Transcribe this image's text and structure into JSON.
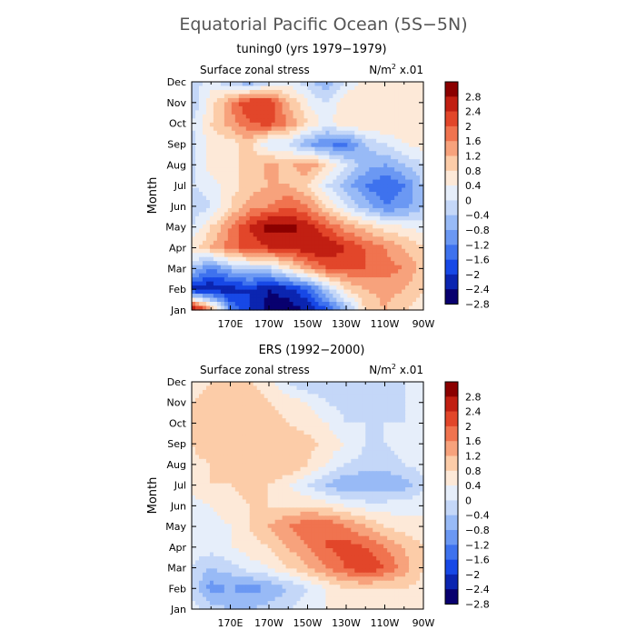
{
  "figure": {
    "title": "Equatorial Pacific Ocean (5S−5N)"
  },
  "colors": {
    "scale": [
      "#08006f",
      "#0b25b0",
      "#1748e6",
      "#3e72ee",
      "#6b98f3",
      "#98baf6",
      "#c4d7f8",
      "#e6eefa",
      "#fde9d8",
      "#fccca8",
      "#f7a27c",
      "#f0734f",
      "#e2462a",
      "#c11f12",
      "#8b0000"
    ]
  },
  "colorbar": {
    "ticks": [
      "2.8",
      "2.4",
      "2",
      "1.6",
      "1.2",
      "0.8",
      "0.4",
      "0",
      "−0.4",
      "−0.8",
      "−1.2",
      "−1.6",
      "−2",
      "−2.4",
      "−2.8"
    ]
  },
  "chart_data": [
    {
      "type": "heatmap",
      "title": "tuning0 (yrs 1979−1979)",
      "subtitle_left": "Surface zonal stress",
      "units_label": "N/m",
      "units_sup": "2",
      "units_suffix": " x.01",
      "ylabel": "Month",
      "xticks": [
        "170E",
        "170W",
        "150W",
        "130W",
        "110W",
        "90W"
      ],
      "xtick_lon": [
        170,
        190,
        210,
        230,
        250,
        270
      ],
      "xlim": [
        150,
        270
      ],
      "yticks": [
        "Jan",
        "Feb",
        "Mar",
        "Apr",
        "May",
        "Jun",
        "Jul",
        "Aug",
        "Sep",
        "Oct",
        "Nov",
        "Dec"
      ],
      "levels": [
        -2.8,
        -2.4,
        -2,
        -1.6,
        -1.2,
        -0.8,
        -0.4,
        0,
        0.4,
        0.8,
        1.2,
        1.6,
        2,
        2.4,
        2.8
      ],
      "lon": [
        150,
        160,
        170,
        180,
        190,
        200,
        210,
        220,
        230,
        240,
        250,
        260,
        270
      ],
      "months": [
        "Jan",
        "Feb",
        "Mar",
        "Apr",
        "May",
        "Jun",
        "Jul",
        "Aug",
        "Sep",
        "Oct",
        "Nov",
        "Dec"
      ],
      "values": [
        [
          3.0,
          1.2,
          -1.6,
          -2.4,
          -3.0,
          -3.0,
          -2.8,
          -2.0,
          -1.0,
          0.4,
          0.8,
          0.4,
          0.2
        ],
        [
          -2.6,
          -2.8,
          -2.6,
          -2.4,
          -2.8,
          -2.6,
          -2.0,
          -0.8,
          0.4,
          0.8,
          1.0,
          0.8,
          0.4
        ],
        [
          -0.8,
          -1.6,
          -1.0,
          -0.6,
          -0.6,
          0.2,
          1.0,
          1.6,
          1.6,
          1.6,
          1.4,
          1.2,
          0.6
        ],
        [
          0.2,
          0.8,
          1.4,
          1.8,
          2.0,
          2.0,
          2.4,
          2.4,
          2.0,
          1.6,
          1.2,
          0.8,
          0.4
        ],
        [
          -0.4,
          0.4,
          1.2,
          2.0,
          2.6,
          2.6,
          2.2,
          1.6,
          1.0,
          0.6,
          0.2,
          0.0,
          -0.2
        ],
        [
          -0.8,
          -0.4,
          0.4,
          1.0,
          1.2,
          1.6,
          1.2,
          0.4,
          -0.4,
          -1.0,
          -1.6,
          -1.4,
          -0.8
        ],
        [
          -0.4,
          -0.2,
          0.2,
          0.6,
          0.8,
          0.8,
          0.4,
          -0.4,
          -1.0,
          -1.6,
          -2.0,
          -1.6,
          -0.8
        ],
        [
          -0.6,
          0.2,
          0.4,
          0.4,
          1.0,
          0.6,
          1.2,
          0.4,
          -0.4,
          -1.0,
          -1.2,
          -0.8,
          -0.4
        ],
        [
          -0.6,
          0.2,
          0.2,
          0.6,
          -0.4,
          -0.4,
          -1.2,
          -1.6,
          -1.8,
          -0.8,
          -0.4,
          0.0,
          0.2
        ],
        [
          -0.4,
          0.4,
          1.0,
          1.6,
          1.8,
          1.2,
          0.4,
          -0.2,
          0.4,
          0.4,
          0.4,
          0.4,
          0.4
        ],
        [
          -0.8,
          0.2,
          1.2,
          2.0,
          2.0,
          0.8,
          0.0,
          -0.4,
          0.4,
          0.4,
          0.4,
          0.4,
          0.4
        ],
        [
          -0.6,
          -0.2,
          -0.8,
          -1.2,
          -0.6,
          -0.2,
          -0.6,
          -1.2,
          -0.4,
          0.2,
          0.4,
          0.4,
          0.4
        ]
      ]
    },
    {
      "type": "heatmap",
      "title": "ERS (1992−2000)",
      "subtitle_left": "Surface zonal stress",
      "units_label": "N/m",
      "units_sup": "2",
      "units_suffix": " x.01",
      "ylabel": "Month",
      "xticks": [
        "170E",
        "170W",
        "150W",
        "130W",
        "110W",
        "90W"
      ],
      "xtick_lon": [
        170,
        190,
        210,
        230,
        250,
        270
      ],
      "xlim": [
        150,
        270
      ],
      "yticks": [
        "Jan",
        "Feb",
        "Mar",
        "Apr",
        "May",
        "Jun",
        "Jul",
        "Aug",
        "Sep",
        "Oct",
        "Nov",
        "Dec"
      ],
      "levels": [
        -2.8,
        -2.4,
        -2,
        -1.6,
        -1.2,
        -0.8,
        -0.4,
        0,
        0.4,
        0.8,
        1.2,
        1.6,
        2,
        2.4,
        2.8
      ],
      "lon": [
        150,
        160,
        170,
        180,
        190,
        200,
        210,
        220,
        230,
        240,
        250,
        260,
        270
      ],
      "months": [
        "Jan",
        "Feb",
        "Mar",
        "Apr",
        "May",
        "Jun",
        "Jul",
        "Aug",
        "Sep",
        "Oct",
        "Nov",
        "Dec"
      ],
      "values": [
        [
          -0.2,
          -0.6,
          -0.8,
          -0.8,
          -0.6,
          -0.4,
          -0.2,
          0.0,
          0.2,
          0.4,
          0.4,
          0.4,
          0.2
        ],
        [
          -0.6,
          -1.4,
          -1.2,
          -1.4,
          -1.2,
          -0.8,
          -0.4,
          0.0,
          0.4,
          0.4,
          0.4,
          0.4,
          0.2
        ],
        [
          -0.4,
          -0.8,
          -0.6,
          -0.2,
          0.0,
          0.4,
          0.8,
          1.2,
          1.6,
          2.0,
          1.6,
          1.0,
          0.4
        ],
        [
          -0.2,
          -0.2,
          0.0,
          0.2,
          0.4,
          0.8,
          1.2,
          1.6,
          1.8,
          1.6,
          1.2,
          0.8,
          0.4
        ],
        [
          -0.2,
          -0.2,
          0.0,
          0.4,
          0.8,
          1.2,
          1.6,
          1.6,
          1.2,
          0.8,
          0.4,
          0.2,
          0.0
        ],
        [
          -0.2,
          0.0,
          0.2,
          0.4,
          0.4,
          0.4,
          0.4,
          0.2,
          0.0,
          -0.2,
          -0.2,
          -0.2,
          0.0
        ],
        [
          0.2,
          0.4,
          0.4,
          0.6,
          0.4,
          0.0,
          -0.4,
          -0.8,
          -1.2,
          -1.2,
          -1.2,
          -1.0,
          -0.6
        ],
        [
          0.2,
          0.4,
          0.6,
          0.6,
          0.8,
          0.8,
          0.4,
          0.0,
          -0.4,
          -0.6,
          -0.6,
          -0.4,
          -0.2
        ],
        [
          0.4,
          0.8,
          0.8,
          0.8,
          0.8,
          0.6,
          0.6,
          0.2,
          0.0,
          -0.4,
          -0.4,
          -0.2,
          -0.2
        ],
        [
          0.4,
          0.6,
          0.8,
          0.8,
          0.6,
          0.4,
          0.2,
          0.0,
          -0.4,
          -0.4,
          -0.4,
          -0.4,
          -0.2
        ],
        [
          0.4,
          0.6,
          0.6,
          0.6,
          0.4,
          0.2,
          0.0,
          -0.4,
          -0.6,
          -0.8,
          -0.6,
          -0.4,
          -0.2
        ],
        [
          0.2,
          0.4,
          0.4,
          0.4,
          0.2,
          -0.4,
          -0.8,
          -0.8,
          -0.4,
          -0.4,
          -0.4,
          -0.4,
          -0.2
        ]
      ]
    }
  ]
}
